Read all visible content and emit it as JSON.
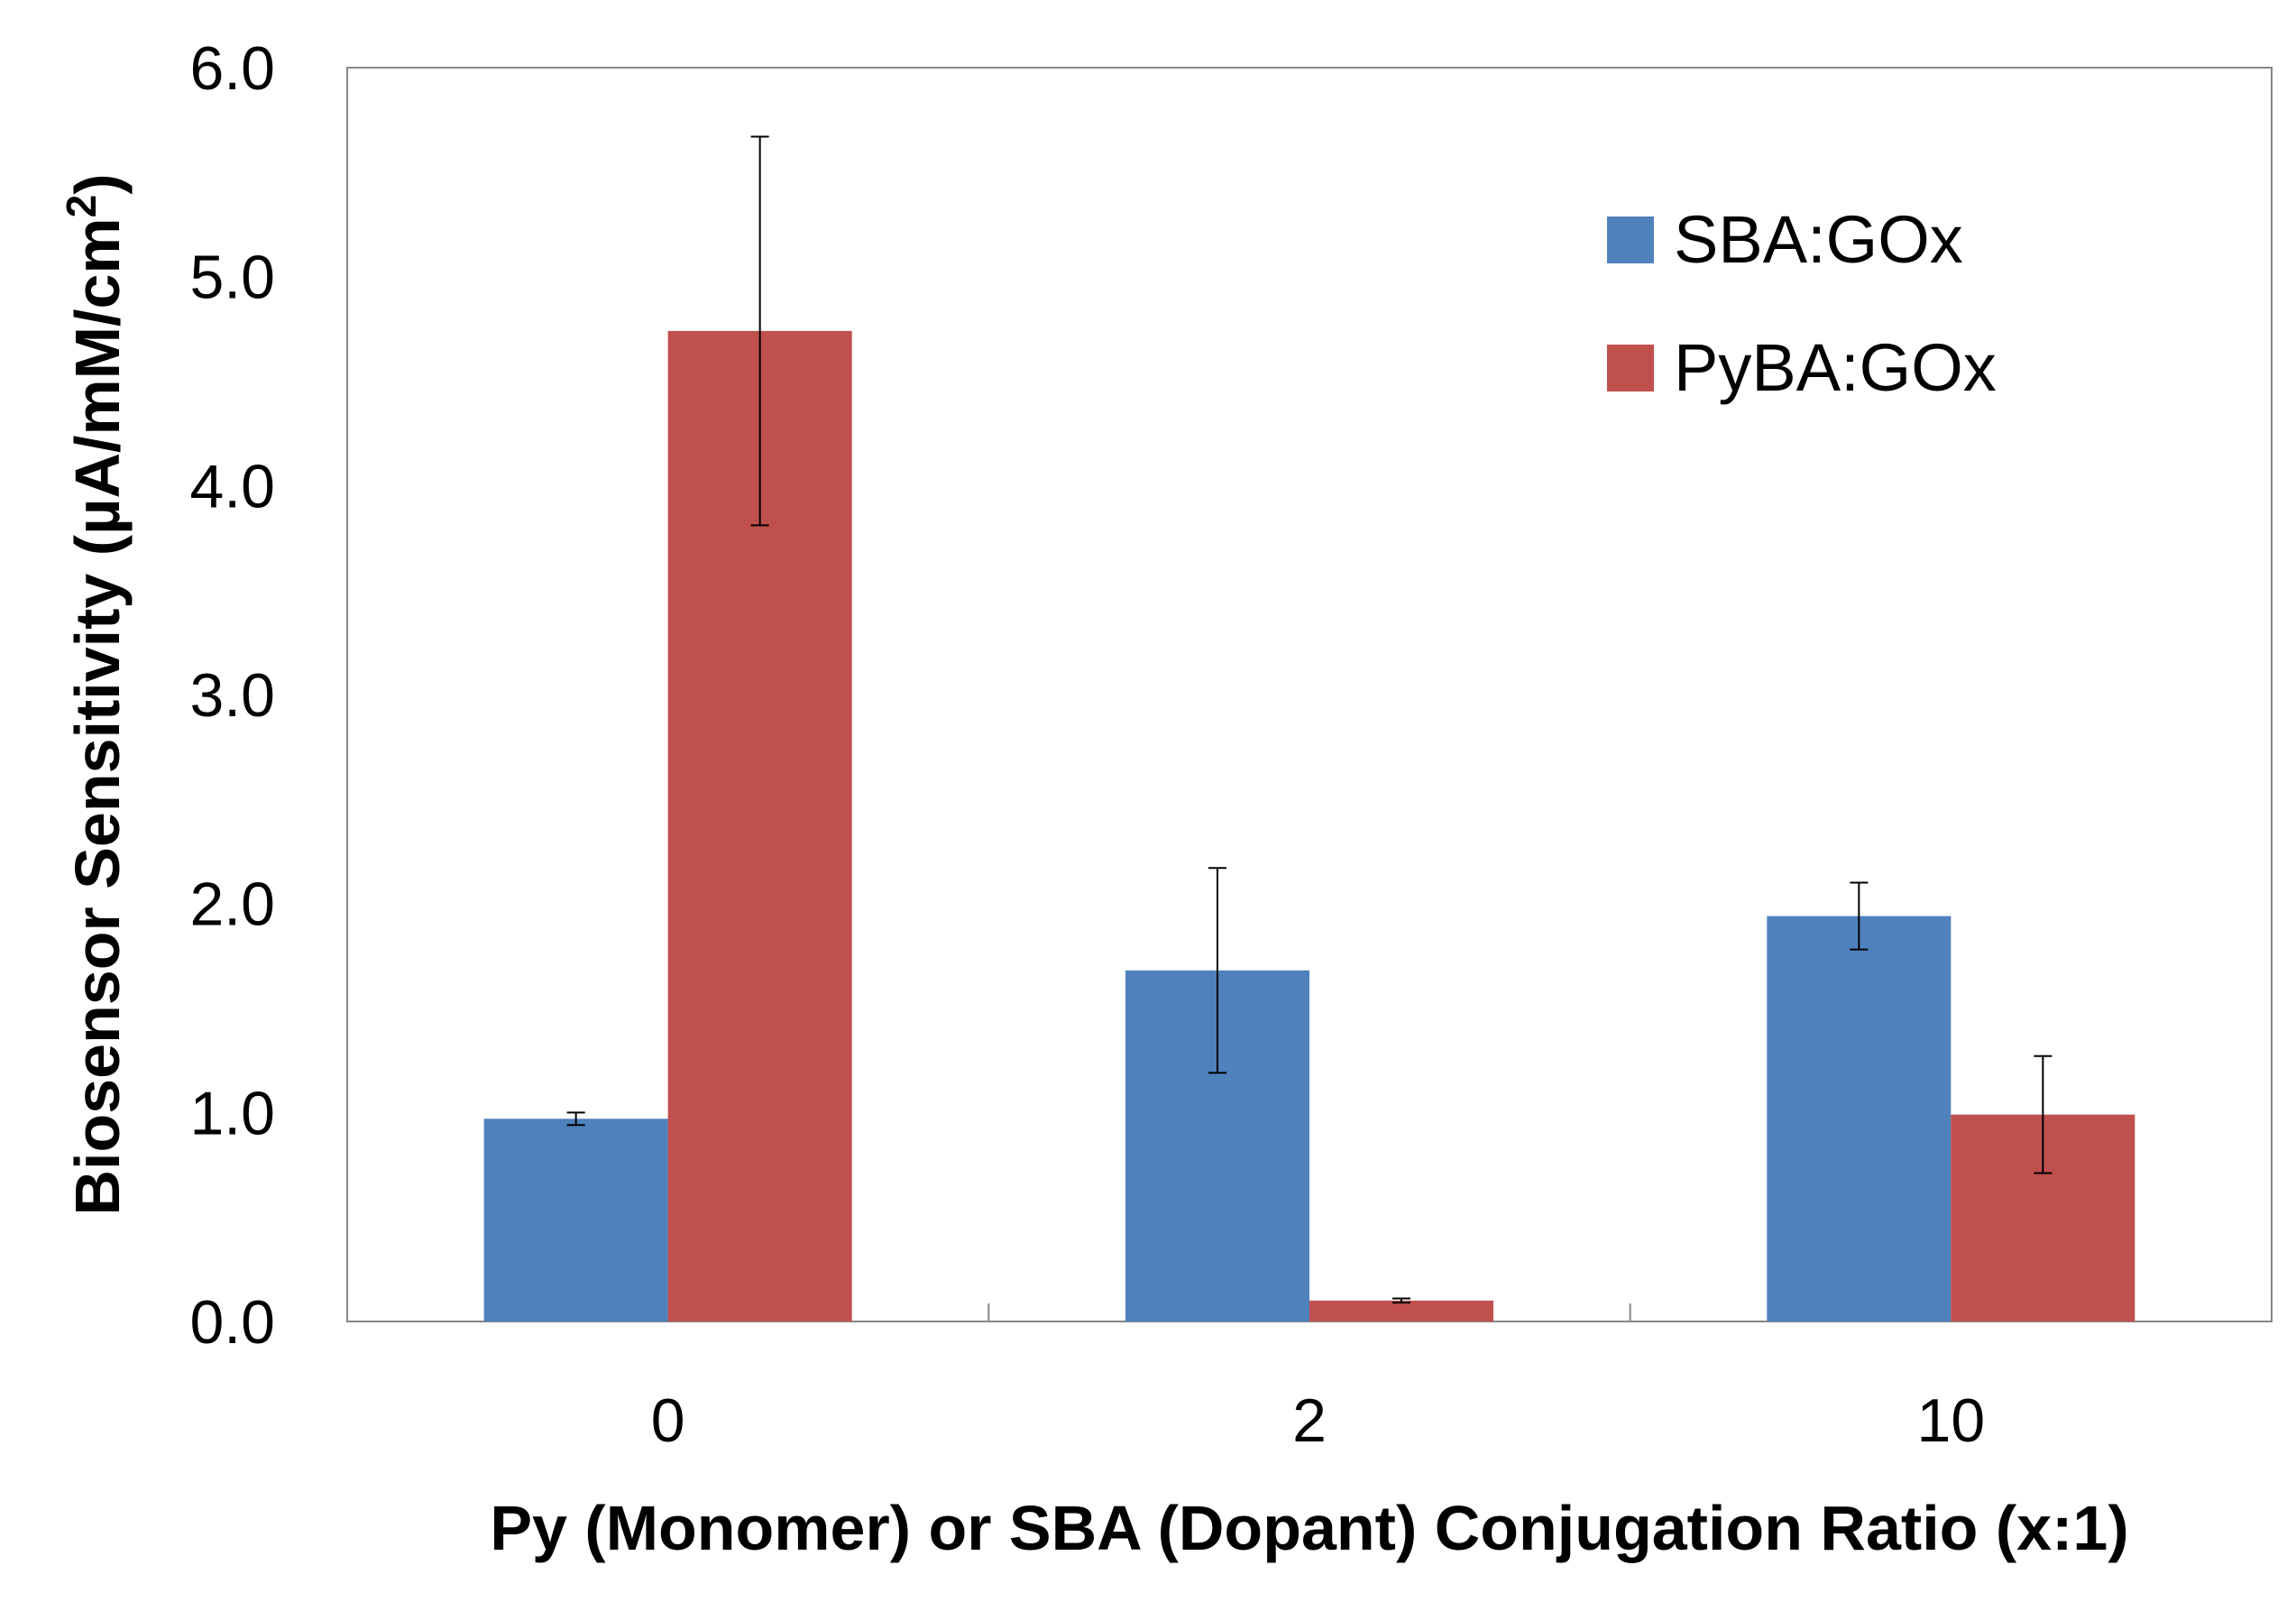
{
  "chart_data": {
    "type": "bar",
    "title": "",
    "xlabel": "Py (Monomer) or SBA (Dopant) Conjugation Ratio (x:1)",
    "ylabel_main": "Biosensor Sensitivity (µA/mM/cm",
    "ylabel_sup": "2",
    "ylabel_close": ")",
    "ylim": [
      0,
      6
    ],
    "yticks": [
      "0.0",
      "1.0",
      "2.0",
      "3.0",
      "4.0",
      "5.0",
      "6.0"
    ],
    "categories": [
      "0",
      "2",
      "10"
    ],
    "series": [
      {
        "name": "SBA:GOx",
        "color": "#4f81bd",
        "values": [
          0.97,
          1.68,
          1.94
        ],
        "errors": [
          0.03,
          0.49,
          0.16
        ]
      },
      {
        "name": "PyBA:GOx",
        "color": "#c0504d",
        "values": [
          4.74,
          0.1,
          0.99
        ],
        "errors": [
          0.93,
          0.01,
          0.28
        ]
      }
    ],
    "grid": false,
    "legend_position": "top-right"
  }
}
